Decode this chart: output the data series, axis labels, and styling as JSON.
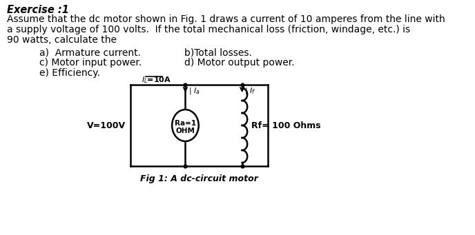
{
  "title": "Exercise :1",
  "paragraph1": "Assume that the dc motor shown in Fig. 1 draws a current of 10 amperes from the line with",
  "paragraph2": "a supply voltage of 100 volts.  If the total mechanical loss (friction, windage, etc.) is",
  "paragraph3": "90 watts, calculate the",
  "item_a": "a)  Armature current.",
  "item_b": "b)Total losses.",
  "item_c": "c) Motor input power.",
  "item_d": "d) Motor output power.",
  "item_e": "e) Efficiency.",
  "fig_label": "Fig 1: A dc-circuit motor",
  "circuit_V": "V=100V",
  "circuit_Ra": "Ra=1\nOHM",
  "circuit_Rf": "Rf= 100 Ohms",
  "bg_color": "#ffffff",
  "text_color": "#000000",
  "font_size_title": 10.5,
  "font_size_body": 10.0,
  "font_size_circuit": 8.5
}
